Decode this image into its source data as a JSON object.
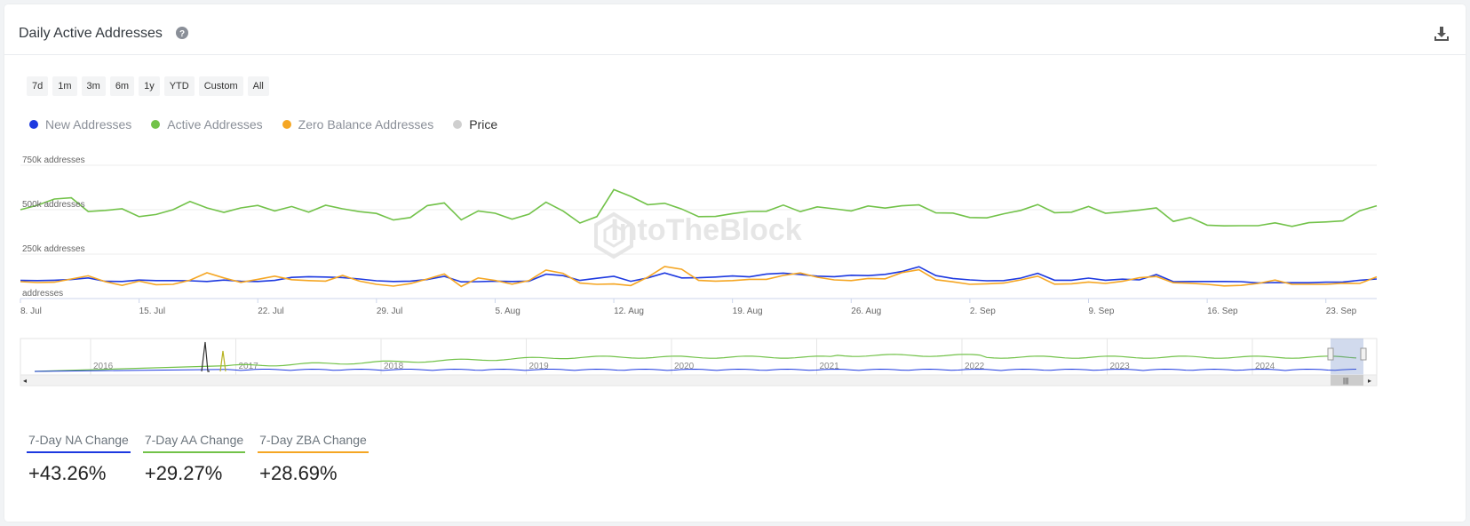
{
  "header": {
    "title": "Daily Active Addresses"
  },
  "range_buttons": [
    "7d",
    "1m",
    "3m",
    "6m",
    "1y",
    "YTD",
    "Custom",
    "All"
  ],
  "legend": [
    {
      "label": "New Addresses",
      "color": "#1d39e0"
    },
    {
      "label": "Active Addresses",
      "color": "#72c249"
    },
    {
      "label": "Zero Balance Addresses",
      "color": "#f5a623"
    },
    {
      "label": "Price",
      "color": "#cfcfcf"
    }
  ],
  "watermark": "IntoTheBlock",
  "navigator": {
    "year_labels": [
      "2016",
      "2017",
      "2018",
      "2019",
      "2020",
      "2021",
      "2022",
      "2023",
      "2024"
    ]
  },
  "stats": [
    {
      "label": "7-Day NA Change",
      "value": "+43.26%",
      "color": "#1d39e0"
    },
    {
      "label": "7-Day AA Change",
      "value": "+29.27%",
      "color": "#72c249"
    },
    {
      "label": "7-Day ZBA Change",
      "value": "+28.69%",
      "color": "#f5a623"
    }
  ],
  "chart_data": {
    "type": "line",
    "title": "",
    "y_tick_labels": [
      "750k addresses",
      "500k addresses",
      "250k addresses",
      "addresses"
    ],
    "y_ticks": [
      750000,
      500000,
      250000,
      0
    ],
    "ylim": [
      0,
      750000
    ],
    "x_tick_labels": [
      "8. Jul",
      "15. Jul",
      "22. Jul",
      "29. Jul",
      "5. Aug",
      "12. Aug",
      "19. Aug",
      "26. Aug",
      "2. Sep",
      "9. Sep",
      "16. Sep",
      "23. Sep"
    ],
    "x_tick_index": [
      0,
      7,
      14,
      21,
      28,
      35,
      42,
      49,
      56,
      63,
      70,
      77
    ],
    "x_start": "8. Jul",
    "grid": true,
    "series": [
      {
        "name": "Active Addresses",
        "color": "#72c249",
        "values": [
          500000,
          525000,
          560000,
          567000,
          490000,
          496000,
          505000,
          461000,
          473000,
          500000,
          546000,
          510000,
          485000,
          510000,
          524000,
          493000,
          518000,
          486000,
          525000,
          505000,
          489000,
          479000,
          442000,
          456000,
          523000,
          538000,
          443000,
          493000,
          480000,
          447000,
          475000,
          542000,
          493000,
          425000,
          461000,
          613000,
          575000,
          528000,
          536000,
          504000,
          461000,
          462000,
          478000,
          490000,
          491000,
          526000,
          489000,
          516000,
          505000,
          493000,
          521000,
          509000,
          522000,
          527000,
          482000,
          481000,
          456000,
          454000,
          477000,
          496000,
          529000,
          483000,
          486000,
          518000,
          480000,
          488000,
          498000,
          510000,
          434000,
          456000,
          413000,
          409000,
          410000,
          410000,
          426000,
          406000,
          427000,
          431000,
          437000,
          494000,
          522000
        ]
      },
      {
        "name": "New Addresses",
        "color": "#1d39e0",
        "values": [
          102000,
          101000,
          103000,
          107000,
          116000,
          97000,
          96000,
          104000,
          101000,
          101000,
          100000,
          96000,
          104000,
          97000,
          96000,
          102000,
          119000,
          123000,
          121000,
          118000,
          110000,
          100000,
          96000,
          98000,
          107000,
          125000,
          94000,
          95000,
          98000,
          96000,
          98000,
          137000,
          129000,
          102000,
          114000,
          125000,
          97000,
          116000,
          144000,
          116000,
          117000,
          121000,
          127000,
          122000,
          138000,
          143000,
          135000,
          126000,
          123000,
          131000,
          129000,
          136000,
          152000,
          179000,
          129000,
          113000,
          105000,
          100000,
          101000,
          115000,
          142000,
          103000,
          103000,
          115000,
          103000,
          109000,
          105000,
          135000,
          95000,
          96000,
          96000,
          96000,
          95000,
          88000,
          90000,
          89000,
          89000,
          92000,
          93000,
          103000,
          110000
        ]
      },
      {
        "name": "Zero Balance Addresses",
        "color": "#f5a623",
        "values": [
          95000,
          90000,
          92000,
          110000,
          128000,
          95000,
          74000,
          98000,
          78000,
          80000,
          103000,
          145000,
          116000,
          91000,
          108000,
          126000,
          106000,
          101000,
          98000,
          130000,
          98000,
          80000,
          70000,
          84000,
          110000,
          138000,
          68000,
          116000,
          102000,
          81000,
          101000,
          160000,
          142000,
          87000,
          80000,
          82000,
          73000,
          120000,
          180000,
          165000,
          102000,
          98000,
          101000,
          108000,
          108000,
          130000,
          144000,
          120000,
          105000,
          101000,
          113000,
          111000,
          146000,
          162000,
          106000,
          94000,
          80000,
          83000,
          87000,
          105000,
          126000,
          81000,
          83000,
          93000,
          85000,
          97000,
          117000,
          124000,
          89000,
          86000,
          80000,
          71000,
          74000,
          85000,
          104000,
          80000,
          80000,
          80000,
          86000,
          85000,
          122000
        ]
      }
    ]
  }
}
